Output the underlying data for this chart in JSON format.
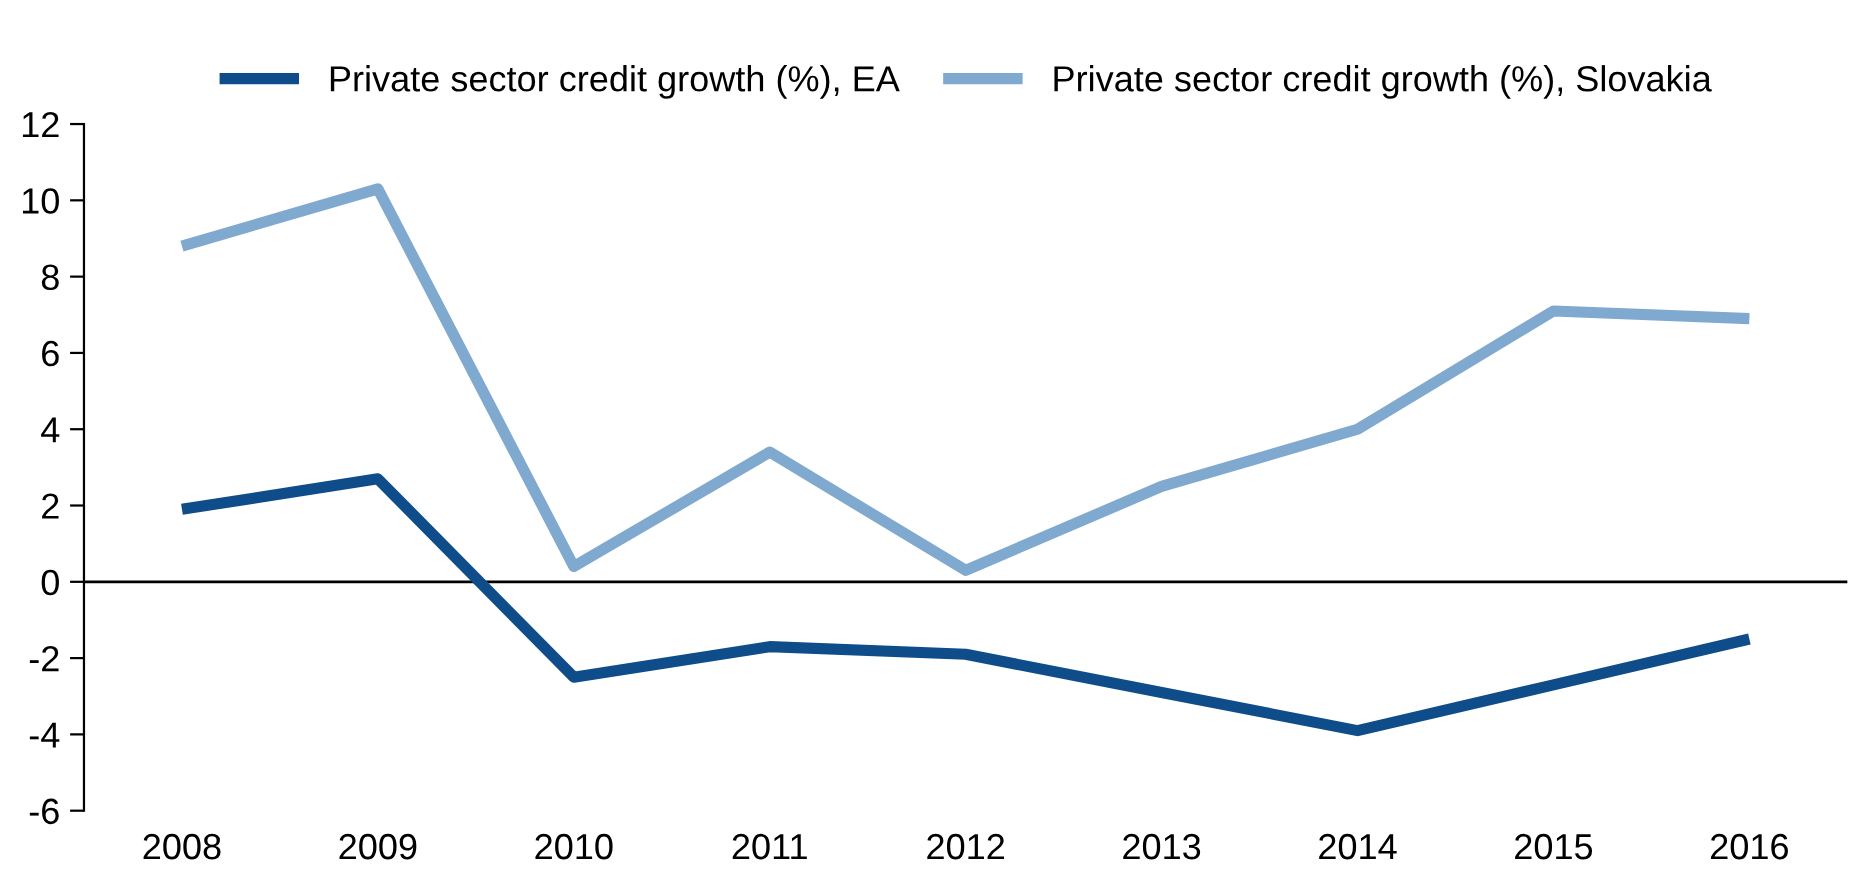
{
  "chart_data": {
    "type": "line",
    "categories": [
      "2008",
      "2009",
      "2010",
      "2011",
      "2012",
      "2013",
      "2014",
      "2015",
      "2016"
    ],
    "series": [
      {
        "name": "Private sector credit growth (%), EA",
        "color": "#0e4d8a",
        "values": [
          1.9,
          2.7,
          -2.5,
          -1.7,
          -1.9,
          -2.9,
          -3.9,
          -2.7,
          -1.5
        ]
      },
      {
        "name": "Private sector credit growth (%), Slovakia",
        "color": "#80a9cf",
        "values": [
          8.8,
          10.3,
          0.4,
          3.4,
          0.3,
          2.5,
          4.0,
          7.1,
          6.9
        ]
      }
    ],
    "ylim": [
      -6,
      12
    ],
    "yticks": [
      -6,
      -4,
      -2,
      0,
      2,
      4,
      6,
      8,
      10,
      12
    ],
    "ref_lines": [
      {
        "axis": "y",
        "value": 0,
        "color": "#000000"
      }
    ],
    "grid": false,
    "legend": "top",
    "marker": "none",
    "line_style": "solid"
  }
}
